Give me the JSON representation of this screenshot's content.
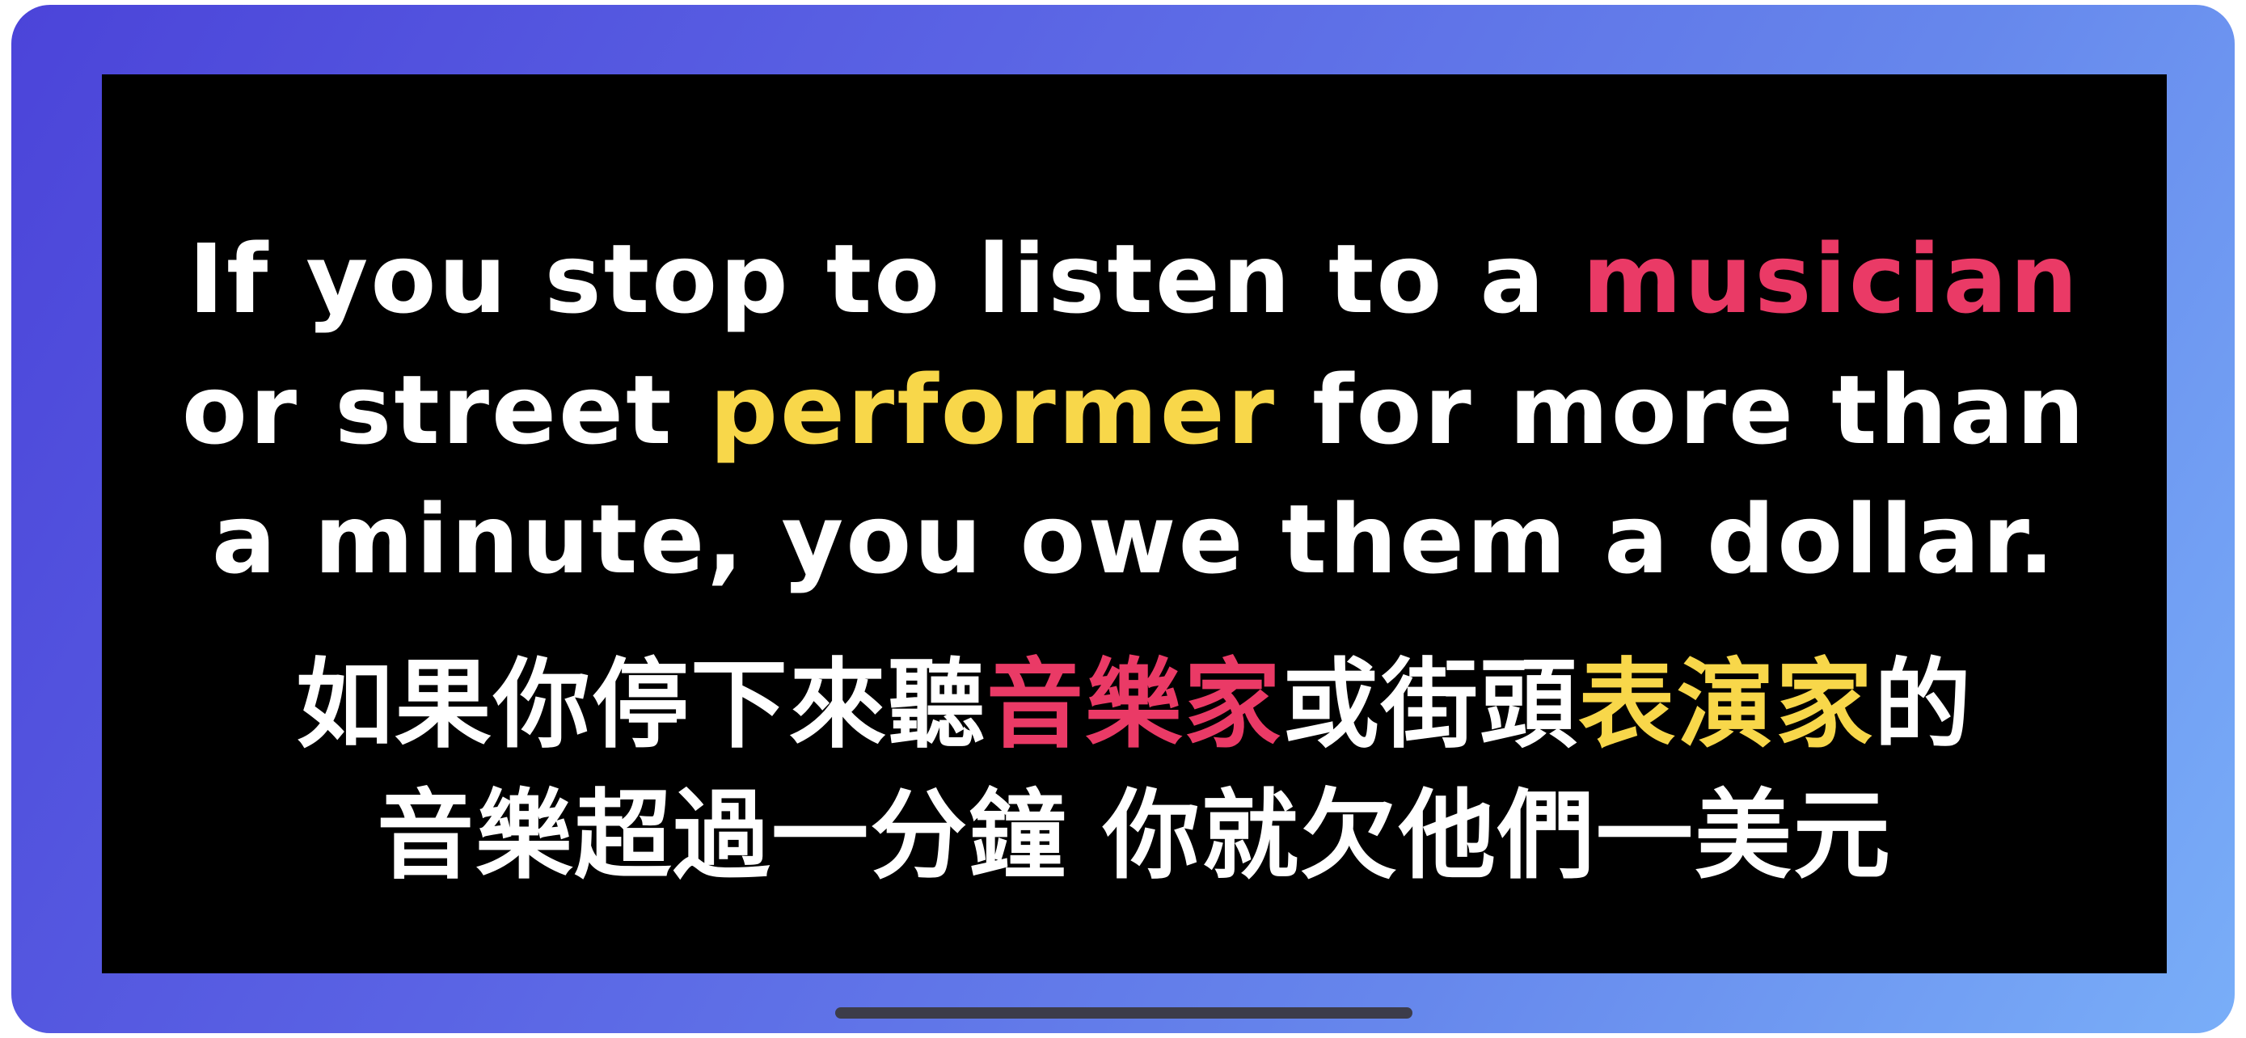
{
  "colors": {
    "frame_start": "#4b44d9",
    "frame_end": "#79aef8",
    "screen_bg": "#000000",
    "text": "#ffffff",
    "highlight_red": "#ea3a66",
    "highlight_yellow": "#f8d74a"
  },
  "english": {
    "line1": {
      "before": "If you stop to listen to a ",
      "highlight": "musician"
    },
    "line2": {
      "before": "or street ",
      "highlight": "performer",
      "after": " for more than"
    },
    "line3": {
      "text": "a minute, you owe them a dollar."
    }
  },
  "chinese": {
    "line1": {
      "before": "如果你停下來聽",
      "highlight1": "音樂家",
      "middle": "或街頭",
      "highlight2": "表演家",
      "after": "的"
    },
    "line2": {
      "text": "音樂超過一分鐘 你就欠他們一美元"
    }
  }
}
